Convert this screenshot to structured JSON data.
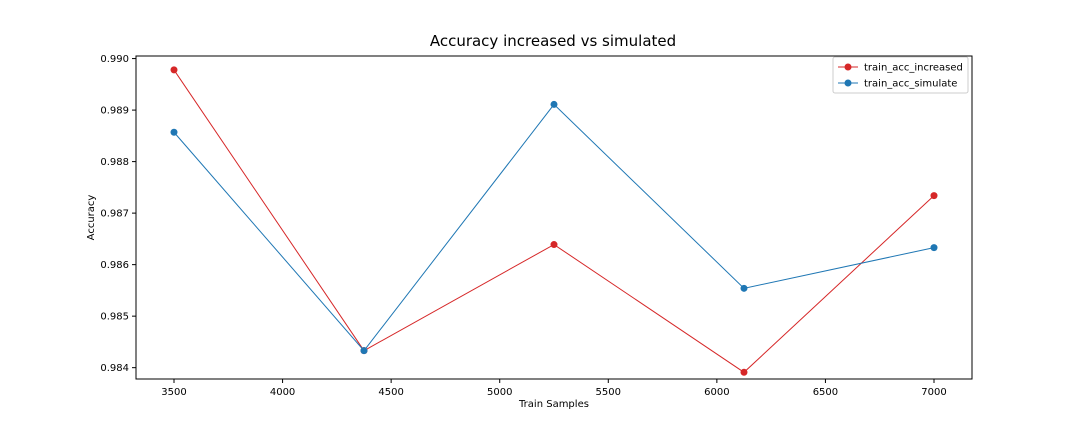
{
  "chart_data": {
    "type": "line",
    "title": "Accuracy increased vs simulated",
    "xlabel": "Train Samples",
    "ylabel": "Accuracy",
    "x": [
      3500,
      4375,
      5250,
      6125,
      7000
    ],
    "xlim": [
      3325,
      7175
    ],
    "ylim": [
      0.98378,
      0.99005
    ],
    "xticks": [
      3500,
      4000,
      4500,
      5000,
      5500,
      6000,
      6500,
      7000
    ],
    "xtick_labels": [
      "3500",
      "4000",
      "4500",
      "5000",
      "5500",
      "6000",
      "6500",
      "7000"
    ],
    "yticks": [
      0.984,
      0.985,
      0.986,
      0.987,
      0.988,
      0.989,
      0.99
    ],
    "ytick_labels": [
      "0.984",
      "0.985",
      "0.986",
      "0.987",
      "0.988",
      "0.989",
      "0.990"
    ],
    "grid": false,
    "legend_position": "top-right",
    "series": [
      {
        "name": "train_acc_increased",
        "color": "#d62728",
        "values": [
          0.98978,
          0.98433,
          0.98639,
          0.98391,
          0.98734
        ]
      },
      {
        "name": "train_acc_simulate",
        "color": "#1f77b4",
        "values": [
          0.98857,
          0.98433,
          0.98911,
          0.98554,
          0.98633
        ]
      }
    ]
  }
}
